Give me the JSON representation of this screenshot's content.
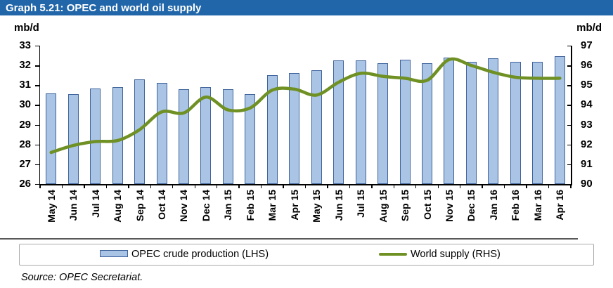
{
  "title": "Graph 5.21: OPEC and world oil supply",
  "unit_left": "mb/d",
  "unit_right": "mb/d",
  "legend": {
    "bar_label": "OPEC crude production (LHS)",
    "line_label": "World supply (RHS)"
  },
  "source": "Source: OPEC Secretariat.",
  "colors": {
    "title_bg": "#2166a9",
    "title_text": "#ffffff",
    "bar_fill": "#a9c4e4",
    "bar_border": "#3f639b",
    "line": "#6f9023",
    "axis": "#000000",
    "legend_border": "#ababab",
    "rule": "#595959"
  },
  "chart_data": {
    "type": "bar",
    "subtype": "bar+line combo, dual axis",
    "title": "Graph 5.21: OPEC and world oil supply",
    "grid": false,
    "legend_position": "bottom",
    "categories": [
      "May 14",
      "Jun 14",
      "Jul 14",
      "Aug 14",
      "Sep 14",
      "Oct 14",
      "Nov 14",
      "Dec 14",
      "Jan 15",
      "Feb 15",
      "Mar 15",
      "Apr 15",
      "May 15",
      "Jun 15",
      "Jul 15",
      "Aug 15",
      "Sep 15",
      "Oct 15",
      "Nov 15",
      "Dec 15",
      "Jan 16",
      "Feb 16",
      "Mar 16",
      "Apr 16"
    ],
    "left_axis": {
      "label": "mb/d",
      "min": 26,
      "max": 33,
      "ticks": [
        26,
        27,
        28,
        29,
        30,
        31,
        32,
        33
      ]
    },
    "right_axis": {
      "label": "mb/d",
      "min": 90,
      "max": 97,
      "ticks": [
        90,
        91,
        92,
        93,
        94,
        95,
        96,
        97
      ]
    },
    "series": [
      {
        "name": "OPEC crude production (LHS)",
        "type": "bar",
        "axis": "left",
        "values": [
          30.6,
          30.55,
          30.85,
          30.9,
          31.3,
          31.1,
          30.8,
          30.9,
          30.8,
          30.55,
          31.5,
          31.6,
          31.75,
          32.25,
          32.25,
          32.1,
          32.3,
          32.1,
          32.4,
          32.2,
          32.35,
          32.2,
          32.2,
          32.45
        ]
      },
      {
        "name": "World supply (RHS)",
        "type": "line",
        "axis": "right",
        "values": [
          91.6,
          91.95,
          92.15,
          92.2,
          92.75,
          93.65,
          93.6,
          94.4,
          93.75,
          93.85,
          94.75,
          94.8,
          94.5,
          95.15,
          95.6,
          95.45,
          95.35,
          95.25,
          96.3,
          96.0,
          95.65,
          95.4,
          95.35,
          95.35
        ]
      }
    ]
  }
}
